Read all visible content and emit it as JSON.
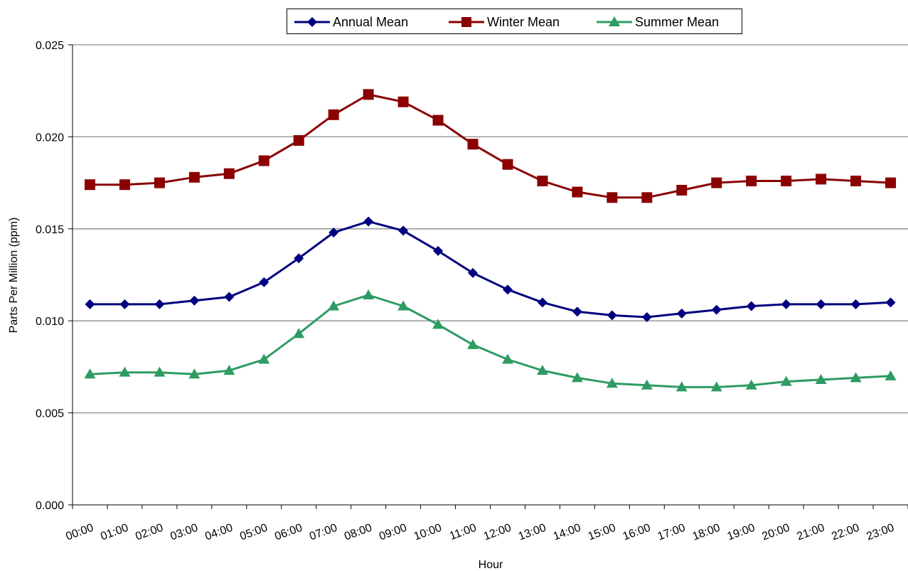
{
  "chart_data": {
    "type": "line",
    "title": "",
    "xlabel": "Hour",
    "ylabel": "Parts Per Million (ppm)",
    "ylim": [
      0,
      0.025
    ],
    "yticks": [
      "0.000",
      "0.005",
      "0.010",
      "0.015",
      "0.020",
      "0.025"
    ],
    "grid": "horizontal",
    "legend_position": "top-center",
    "categories": [
      "00:00",
      "01:00",
      "02:00",
      "03:00",
      "04:00",
      "05:00",
      "06:00",
      "07:00",
      "08:00",
      "09:00",
      "10:00",
      "11:00",
      "12:00",
      "13:00",
      "14:00",
      "15:00",
      "16:00",
      "17:00",
      "18:00",
      "19:00",
      "20:00",
      "21:00",
      "22:00",
      "23:00"
    ],
    "series": [
      {
        "name": "Annual Mean",
        "marker": "diamond",
        "color": "#000080",
        "values": [
          0.0109,
          0.0109,
          0.0109,
          0.0111,
          0.0113,
          0.0121,
          0.0134,
          0.0148,
          0.0154,
          0.0149,
          0.0138,
          0.0126,
          0.0117,
          0.011,
          0.0105,
          0.0103,
          0.0102,
          0.0104,
          0.0106,
          0.0108,
          0.0109,
          0.0109,
          0.0109,
          0.011
        ]
      },
      {
        "name": "Winter Mean",
        "marker": "square",
        "color": "#8b0000",
        "values": [
          0.0174,
          0.0174,
          0.0175,
          0.0178,
          0.018,
          0.0187,
          0.0198,
          0.0212,
          0.0223,
          0.0219,
          0.0209,
          0.0196,
          0.0185,
          0.0176,
          0.017,
          0.0167,
          0.0167,
          0.0171,
          0.0175,
          0.0176,
          0.0176,
          0.0177,
          0.0176,
          0.0175
        ]
      },
      {
        "name": "Summer Mean",
        "marker": "triangle",
        "color": "#2e9b63",
        "values": [
          0.0071,
          0.0072,
          0.0072,
          0.0071,
          0.0073,
          0.0079,
          0.0093,
          0.0108,
          0.0114,
          0.0108,
          0.0098,
          0.0087,
          0.0079,
          0.0073,
          0.0069,
          0.0066,
          0.0065,
          0.0064,
          0.0064,
          0.0065,
          0.0067,
          0.0068,
          0.0069,
          0.007
        ]
      }
    ]
  }
}
